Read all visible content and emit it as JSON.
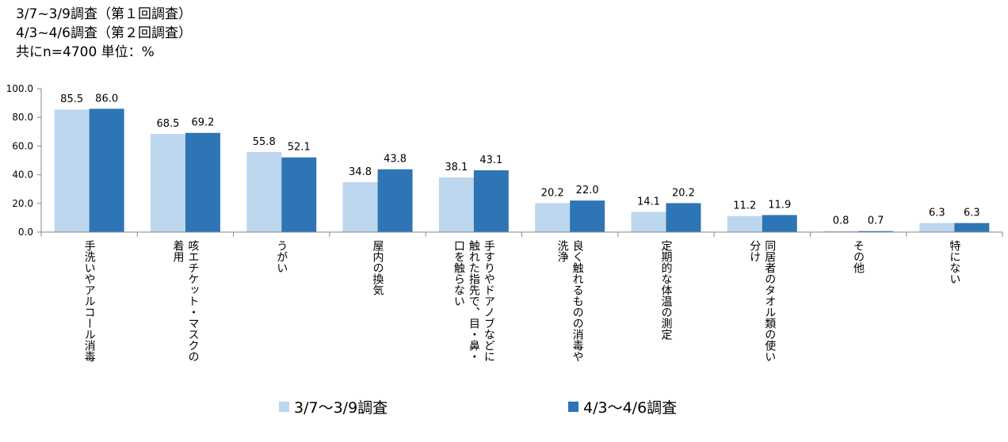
{
  "header": {
    "line1": "3/7~3/9調査（第１回調査）",
    "line2": "4/3~4/6調査（第２回調査）",
    "line3": "共にn=4700 単位：%"
  },
  "colors": {
    "series1": "#bdd7ee",
    "series2": "#2e75b6",
    "axis": "#868686"
  },
  "chart_data": {
    "type": "bar",
    "ylim": [
      0,
      100
    ],
    "yticks": [
      "0.0",
      "20.0",
      "40.0",
      "60.0",
      "80.0",
      "100.0"
    ],
    "categories": [
      [
        "手洗いやアルコール消毒"
      ],
      [
        "咳エチケット・マスクの",
        "着用"
      ],
      [
        "うがい"
      ],
      [
        "屋内の換気"
      ],
      [
        "手すりやドアノブなどに",
        "触れた指先で、目・鼻・",
        "口を触らない"
      ],
      [
        "良く触れるものの消毒や",
        "洗浄"
      ],
      [
        "定期的な体温の測定"
      ],
      [
        "同居者のタオル類の使い",
        "分け"
      ],
      [
        "その他"
      ],
      [
        "特にない"
      ]
    ],
    "series": [
      {
        "name": "3/7～3/9調査",
        "values": [
          85.5,
          68.5,
          55.8,
          34.8,
          38.1,
          20.2,
          14.1,
          11.2,
          0.8,
          6.3
        ],
        "labels": [
          "85.5",
          "68.5",
          "55.8",
          "34.8",
          "38.1",
          "20.2",
          "14.1",
          "11.2",
          "0.8",
          "6.3"
        ]
      },
      {
        "name": "4/3～4/6調査",
        "values": [
          86.0,
          69.2,
          52.1,
          43.8,
          43.1,
          22.0,
          20.2,
          11.9,
          0.7,
          6.3
        ],
        "labels": [
          "86.0",
          "69.2",
          "52.1",
          "43.8",
          "43.1",
          "22.0",
          "20.2",
          "11.9",
          "0.7",
          "6.3"
        ]
      }
    ]
  }
}
